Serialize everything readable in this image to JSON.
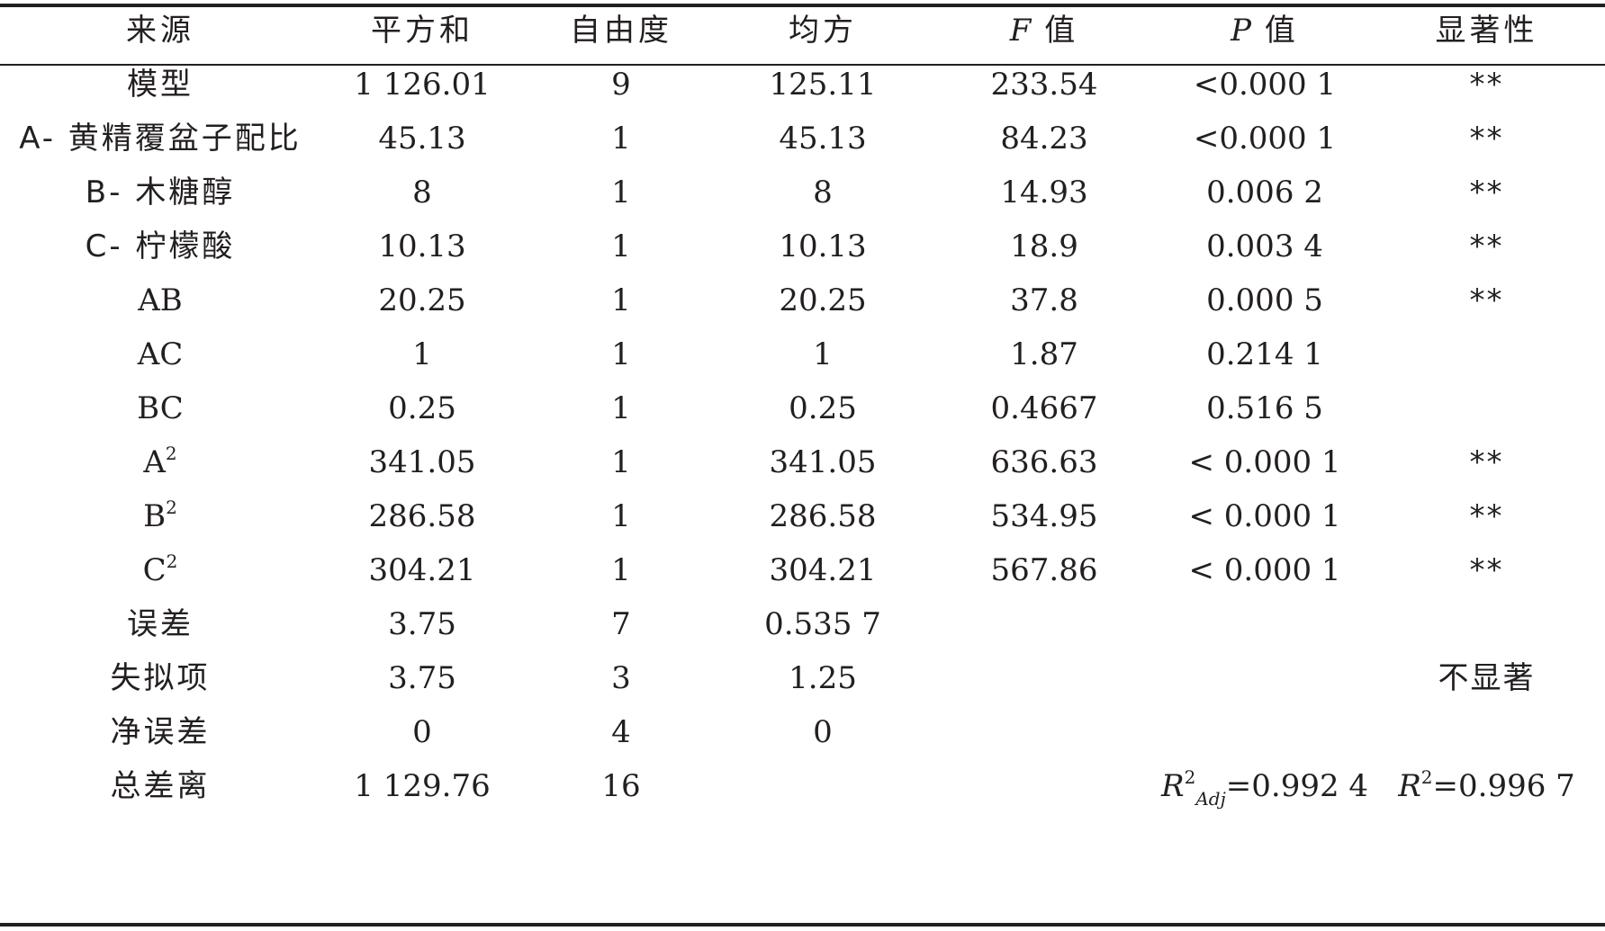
{
  "headers": {
    "source": "来源",
    "ss": "平方和",
    "df": "自由度",
    "ms": "均方",
    "f_letter": "F",
    "f_suffix": " 值",
    "p_letter": "P",
    "p_suffix": " 值",
    "sig": "显著性"
  },
  "rows": [
    {
      "source": "模型",
      "ss": "1 126.01",
      "df": "9",
      "ms": "125.11",
      "f": "233.54",
      "p": "<0.000 1",
      "sig": "**"
    },
    {
      "source": "A- 黄精覆盆子配比",
      "ss": "45.13",
      "df": "1",
      "ms": "45.13",
      "f": "84.23",
      "p": "<0.000 1",
      "sig": "**"
    },
    {
      "source": "B- 木糖醇",
      "ss": "8",
      "df": "1",
      "ms": "8",
      "f": "14.93",
      "p": "0.006 2",
      "sig": "**"
    },
    {
      "source": "C- 柠檬酸",
      "ss": "10.13",
      "df": "1",
      "ms": "10.13",
      "f": "18.9",
      "p": "0.003 4",
      "sig": "**"
    },
    {
      "source": "AB",
      "ss": "20.25",
      "df": "1",
      "ms": "20.25",
      "f": "37.8",
      "p": "0.000 5",
      "sig": "**"
    },
    {
      "source": "AC",
      "ss": "1",
      "df": "1",
      "ms": "1",
      "f": "1.87",
      "p": "0.214 1",
      "sig": ""
    },
    {
      "source": "BC",
      "ss": "0.25",
      "df": "1",
      "ms": "0.25",
      "f": "0.4667",
      "p": "0.516 5",
      "sig": ""
    },
    {
      "source_base": "A",
      "source_sup": "2",
      "ss": "341.05",
      "df": "1",
      "ms": "341.05",
      "f": "636.63",
      "p": "< 0.000 1",
      "sig": "**"
    },
    {
      "source_base": "B",
      "source_sup": "2",
      "ss": "286.58",
      "df": "1",
      "ms": "286.58",
      "f": "534.95",
      "p": "< 0.000 1",
      "sig": "**"
    },
    {
      "source_base": "C",
      "source_sup": "2",
      "ss": "304.21",
      "df": "1",
      "ms": "304.21",
      "f": "567.86",
      "p": "< 0.000 1",
      "sig": "**"
    },
    {
      "source": "误差",
      "ss": "3.75",
      "df": "7",
      "ms": "0.535 7",
      "f": "",
      "p": "",
      "sig": ""
    },
    {
      "source": "失拟项",
      "ss": "3.75",
      "df": "3",
      "ms": "1.25",
      "f": "",
      "p": "",
      "sig": "不显著"
    },
    {
      "source": "净误差",
      "ss": "0",
      "df": "4",
      "ms": "0",
      "f": "",
      "p": "",
      "sig": ""
    },
    {
      "source": "总差离",
      "ss": "1 129.76",
      "df": "16",
      "ms": "",
      "f": "",
      "p": "",
      "sig": ""
    }
  ],
  "fit_stats": {
    "r2adj_letter": "R",
    "r2adj_sup": "2",
    "r2adj_sub": "Adj",
    "r2adj_value": "=0.992 4",
    "r2_letter": "R",
    "r2_sup": "2",
    "r2_value": "=0.996 7"
  }
}
